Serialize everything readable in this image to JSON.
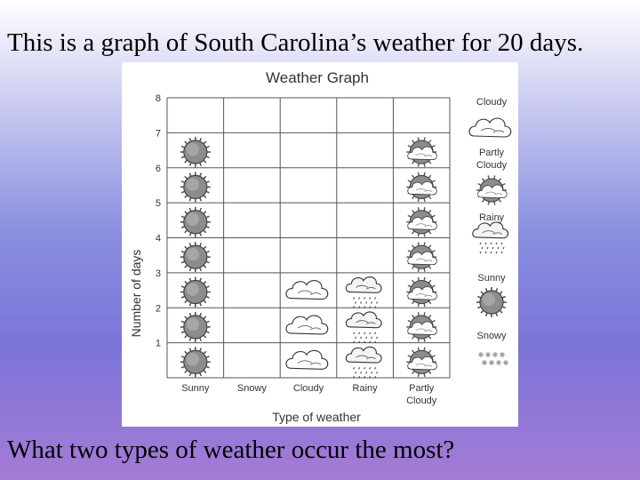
{
  "slide": {
    "title": "This is a graph of South Carolina’s weather for 20 days.",
    "question": "What two types of weather occur the most?"
  },
  "chart_data": {
    "type": "pictograph",
    "title": "Weather Graph",
    "xlabel": "Type of weather",
    "ylabel": "Number of days",
    "ylim": [
      0,
      8
    ],
    "yticks": [
      "1",
      "2",
      "3",
      "4",
      "5",
      "6",
      "7",
      "8"
    ],
    "categories": [
      "Sunny",
      "Snowy",
      "Cloudy",
      "Rainy",
      "Partly Cloudy"
    ],
    "values": [
      7,
      0,
      3,
      3,
      7
    ],
    "grid": true,
    "legend": {
      "placement": "right",
      "items": [
        {
          "label": "Cloudy",
          "icon": "cloud-icon"
        },
        {
          "label": "Partly Cloudy",
          "icon": "partly-cloudy-icon"
        },
        {
          "label": "Rainy",
          "icon": "rain-cloud-icon"
        },
        {
          "label": "Sunny",
          "icon": "sun-icon"
        },
        {
          "label": "Snowy",
          "icon": "snow-icon"
        }
      ]
    },
    "category_icons": [
      "sun-icon",
      "snow-icon",
      "cloud-icon",
      "rain-cloud-icon",
      "partly-cloudy-icon"
    ]
  }
}
